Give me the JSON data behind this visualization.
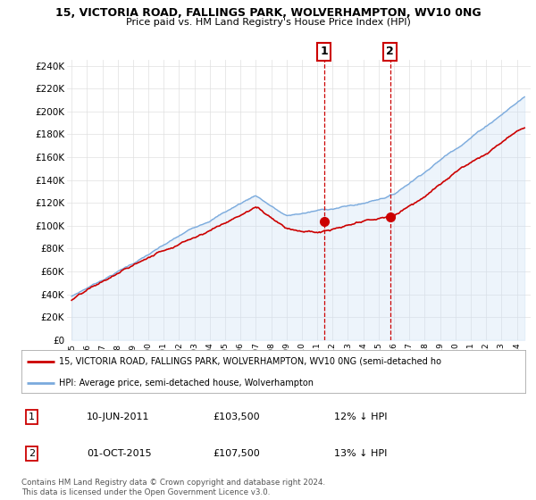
{
  "title": "15, VICTORIA ROAD, FALLINGS PARK, WOLVERHAMPTON, WV10 0NG",
  "subtitle": "Price paid vs. HM Land Registry's House Price Index (HPI)",
  "ylabel_ticks": [
    "£0",
    "£20K",
    "£40K",
    "£60K",
    "£80K",
    "£100K",
    "£120K",
    "£140K",
    "£160K",
    "£180K",
    "£200K",
    "£220K",
    "£240K"
  ],
  "ylim": [
    0,
    245000
  ],
  "ytick_vals": [
    0,
    20000,
    40000,
    60000,
    80000,
    100000,
    120000,
    140000,
    160000,
    180000,
    200000,
    220000,
    240000
  ],
  "xlim_start": 1994.7,
  "xlim_end": 2024.9,
  "hpi_color": "#aac8e8",
  "hpi_fill_color": "#cce0f5",
  "hpi_line_color": "#7aaadd",
  "price_color": "#cc0000",
  "sale1_date": 2011.44,
  "sale1_price": 103500,
  "sale2_date": 2015.75,
  "sale2_price": 107500,
  "legend_line1": "15, VICTORIA ROAD, FALLINGS PARK, WOLVERHAMPTON, WV10 0NG (semi-detached ho",
  "legend_line2": "HPI: Average price, semi-detached house, Wolverhampton",
  "table_rows": [
    [
      "1",
      "10-JUN-2011",
      "£103,500",
      "12% ↓ HPI"
    ],
    [
      "2",
      "01-OCT-2015",
      "£107,500",
      "13% ↓ HPI"
    ]
  ],
  "footnote": "Contains HM Land Registry data © Crown copyright and database right 2024.\nThis data is licensed under the Open Government Licence v3.0.",
  "background_color": "#ffffff",
  "grid_color": "#e0e0e0"
}
